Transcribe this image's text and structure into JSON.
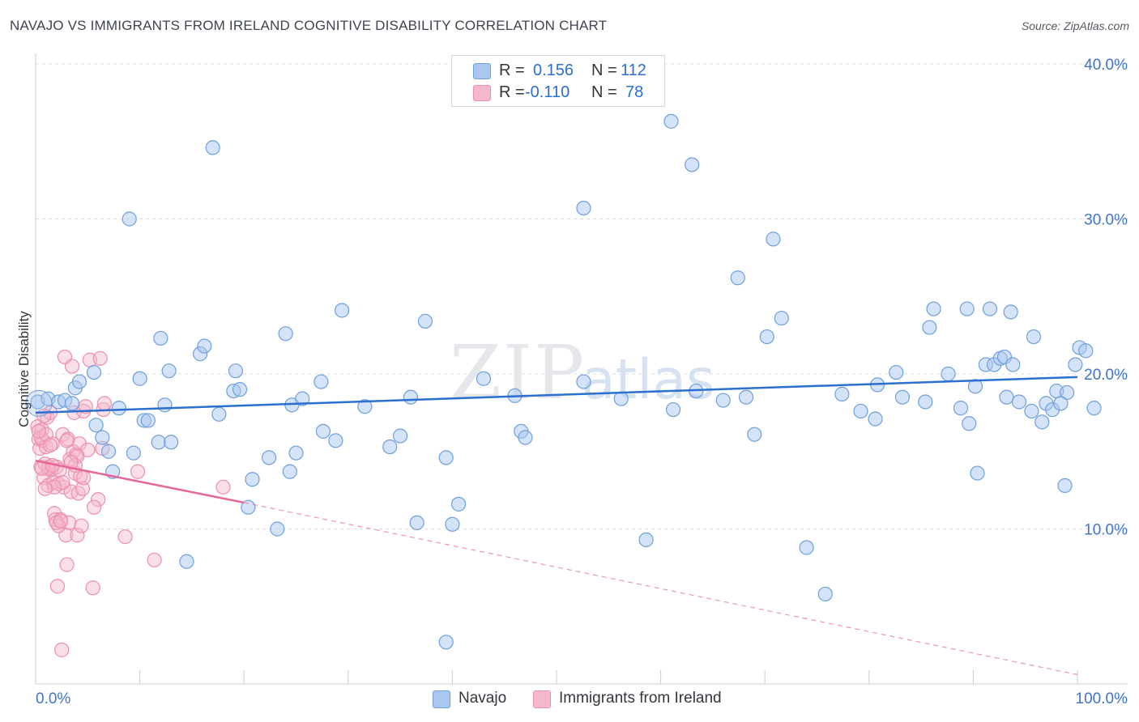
{
  "title": "NAVAJO VS IMMIGRANTS FROM IRELAND COGNITIVE DISABILITY CORRELATION CHART",
  "source": "Source: ZipAtlas.com",
  "watermark": {
    "zip": "ZIP",
    "atlas": "atlas"
  },
  "legend": {
    "navajo": {
      "r_label": "R =",
      "r_value": "0.156",
      "n_label": "N =",
      "n_value": "112"
    },
    "ireland": {
      "r_label": "R =",
      "r_value": "-0.110",
      "n_label": "N =",
      "n_value": "78"
    }
  },
  "colors": {
    "navajo_fill": "#a9c7ef",
    "navajo_stroke": "#6f9fdc",
    "navajo_line": "#2b6fcf",
    "ireland_fill": "#f5b8cb",
    "ireland_stroke": "#ec8fab",
    "ireland_line": "#e5679a",
    "axis_text": "#3f74c8",
    "grid": "#d9dce2"
  },
  "chart_data": {
    "type": "scatter",
    "title": "NAVAJO VS IMMIGRANTS FROM IRELAND COGNITIVE DISABILITY CORRELATION CHART",
    "ylabel": "Cognitive Disability",
    "xlabel": "",
    "xlim": [
      0,
      100
    ],
    "ylim": [
      0,
      41
    ],
    "x_tick_labels": [
      "0.0%",
      "100.0%"
    ],
    "y_ticks": [
      10,
      20,
      30,
      40
    ],
    "y_tick_labels": [
      "10.0%",
      "20.0%",
      "30.0%",
      "40.0%"
    ],
    "grid": true,
    "legend_position": "bottom",
    "series": [
      {
        "name": "Navajo",
        "trend": {
          "x0": 0,
          "y0": 17.5,
          "x1": 100,
          "y1": 19.8
        },
        "points": [
          [
            0.2,
            18.2
          ],
          [
            1.2,
            18.4
          ],
          [
            2.2,
            18.2
          ],
          [
            2.8,
            18.3
          ],
          [
            3.5,
            18.1
          ],
          [
            3.8,
            19.1
          ],
          [
            4.2,
            19.5
          ],
          [
            5.6,
            20.1
          ],
          [
            5.8,
            16.7
          ],
          [
            6.4,
            15.9
          ],
          [
            7.0,
            15.0
          ],
          [
            7.4,
            13.7
          ],
          [
            8.0,
            17.8
          ],
          [
            9.0,
            30.0
          ],
          [
            9.4,
            14.9
          ],
          [
            10.0,
            19.7
          ],
          [
            10.4,
            17.0
          ],
          [
            10.8,
            17.0
          ],
          [
            11.8,
            15.6
          ],
          [
            12.0,
            22.3
          ],
          [
            12.4,
            18.0
          ],
          [
            12.8,
            20.2
          ],
          [
            13.0,
            15.6
          ],
          [
            14.5,
            7.9
          ],
          [
            15.8,
            21.3
          ],
          [
            16.2,
            21.8
          ],
          [
            17.0,
            34.6
          ],
          [
            17.6,
            17.4
          ],
          [
            19.0,
            18.9
          ],
          [
            19.2,
            20.2
          ],
          [
            19.6,
            19.0
          ],
          [
            20.4,
            11.4
          ],
          [
            20.8,
            13.2
          ],
          [
            22.4,
            14.6
          ],
          [
            23.2,
            10.0
          ],
          [
            24.0,
            22.6
          ],
          [
            24.6,
            18.0
          ],
          [
            25.0,
            14.9
          ],
          [
            25.6,
            18.4
          ],
          [
            27.4,
            19.5
          ],
          [
            27.6,
            16.3
          ],
          [
            28.8,
            15.7
          ],
          [
            29.4,
            24.1
          ],
          [
            31.6,
            17.9
          ],
          [
            34.0,
            15.3
          ],
          [
            35.0,
            16.0
          ],
          [
            36.0,
            18.5
          ],
          [
            37.4,
            23.4
          ],
          [
            39.4,
            14.6
          ],
          [
            40.6,
            11.6
          ],
          [
            43.0,
            19.7
          ],
          [
            46.0,
            18.6
          ],
          [
            46.6,
            16.3
          ],
          [
            47.0,
            15.9
          ],
          [
            52.6,
            30.7
          ],
          [
            52.6,
            19.5
          ],
          [
            56.2,
            18.4
          ],
          [
            58.6,
            9.3
          ],
          [
            61.0,
            36.3
          ],
          [
            61.2,
            17.7
          ],
          [
            63.0,
            33.5
          ],
          [
            63.4,
            18.9
          ],
          [
            66.0,
            18.3
          ],
          [
            67.4,
            26.2
          ],
          [
            68.2,
            18.5
          ],
          [
            69.0,
            16.1
          ],
          [
            70.2,
            22.4
          ],
          [
            70.8,
            28.7
          ],
          [
            71.6,
            23.6
          ],
          [
            74.0,
            8.8
          ],
          [
            75.8,
            5.8
          ],
          [
            77.4,
            18.7
          ],
          [
            79.2,
            17.6
          ],
          [
            80.6,
            17.1
          ],
          [
            80.8,
            19.3
          ],
          [
            82.6,
            20.1
          ],
          [
            83.2,
            18.5
          ],
          [
            85.4,
            18.2
          ],
          [
            85.8,
            23.0
          ],
          [
            86.2,
            24.2
          ],
          [
            87.6,
            20.0
          ],
          [
            88.8,
            17.8
          ],
          [
            89.4,
            24.2
          ],
          [
            89.6,
            16.8
          ],
          [
            90.2,
            19.2
          ],
          [
            90.4,
            13.6
          ],
          [
            91.2,
            20.6
          ],
          [
            91.6,
            24.2
          ],
          [
            92.0,
            20.6
          ],
          [
            92.6,
            21.0
          ],
          [
            93.0,
            21.1
          ],
          [
            93.6,
            24.0
          ],
          [
            93.8,
            20.6
          ],
          [
            94.4,
            18.2
          ],
          [
            95.6,
            17.6
          ],
          [
            95.8,
            22.4
          ],
          [
            96.6,
            16.9
          ],
          [
            97.0,
            18.1
          ],
          [
            97.6,
            17.7
          ],
          [
            98.0,
            18.9
          ],
          [
            98.8,
            12.8
          ],
          [
            99.0,
            18.8
          ],
          [
            99.8,
            20.6
          ],
          [
            100.2,
            21.7
          ],
          [
            100.8,
            21.5
          ],
          [
            101.6,
            17.8
          ],
          [
            98.4,
            18.1
          ],
          [
            93.2,
            18.5
          ],
          [
            24.4,
            13.7
          ],
          [
            39.4,
            2.7
          ],
          [
            40.0,
            10.3
          ],
          [
            36.6,
            10.4
          ]
        ]
      },
      {
        "name": "Immigrants from Ireland",
        "trend": {
          "x0": 0,
          "y0": 14.4,
          "x1": 20,
          "y1": 11.7,
          "dash_to": {
            "x": 100,
            "y": 0.6
          }
        },
        "points": [
          [
            0.2,
            16.6
          ],
          [
            0.3,
            15.8
          ],
          [
            0.4,
            15.2
          ],
          [
            0.5,
            14.0
          ],
          [
            0.6,
            16.4
          ],
          [
            0.7,
            15.7
          ],
          [
            0.8,
            13.3
          ],
          [
            0.9,
            14.2
          ],
          [
            1.0,
            15.3
          ],
          [
            1.1,
            17.2
          ],
          [
            1.2,
            12.8
          ],
          [
            1.3,
            14.0
          ],
          [
            1.4,
            17.5
          ],
          [
            1.5,
            13.8
          ],
          [
            1.6,
            15.5
          ],
          [
            1.7,
            13.0
          ],
          [
            1.8,
            11.0
          ],
          [
            1.9,
            10.6
          ],
          [
            2.0,
            14.0
          ],
          [
            2.1,
            6.3
          ],
          [
            2.2,
            12.9
          ],
          [
            2.3,
            13.8
          ],
          [
            2.4,
            10.6
          ],
          [
            2.5,
            2.2
          ],
          [
            2.6,
            16.1
          ],
          [
            2.7,
            12.7
          ],
          [
            2.8,
            21.1
          ],
          [
            2.9,
            9.6
          ],
          [
            3.0,
            7.7
          ],
          [
            3.1,
            15.8
          ],
          [
            3.2,
            10.4
          ],
          [
            3.3,
            14.5
          ],
          [
            3.4,
            12.4
          ],
          [
            3.5,
            20.5
          ],
          [
            3.6,
            15.0
          ],
          [
            3.7,
            17.5
          ],
          [
            3.8,
            13.6
          ],
          [
            3.9,
            14.8
          ],
          [
            4.0,
            9.6
          ],
          [
            4.1,
            12.3
          ],
          [
            4.2,
            15.5
          ],
          [
            4.3,
            13.4
          ],
          [
            4.4,
            10.2
          ],
          [
            4.5,
            12.6
          ],
          [
            4.6,
            17.6
          ],
          [
            4.8,
            17.9
          ],
          [
            5.0,
            15.1
          ],
          [
            5.2,
            20.9
          ],
          [
            5.5,
            6.2
          ],
          [
            6.0,
            11.9
          ],
          [
            6.2,
            21.0
          ],
          [
            6.5,
            17.7
          ],
          [
            6.6,
            18.1
          ],
          [
            8.6,
            9.5
          ],
          [
            9.8,
            13.7
          ],
          [
            11.4,
            8.0
          ],
          [
            18.0,
            12.7
          ],
          [
            0.5,
            15.9
          ],
          [
            1.2,
            13.9
          ],
          [
            2.2,
            10.2
          ],
          [
            3.8,
            14.1
          ],
          [
            1.0,
            16.1
          ],
          [
            0.8,
            17.3
          ],
          [
            1.4,
            15.4
          ],
          [
            3.0,
            15.7
          ],
          [
            0.6,
            13.9
          ],
          [
            2.6,
            13.0
          ],
          [
            1.8,
            12.7
          ],
          [
            4.0,
            14.7
          ],
          [
            2.0,
            10.4
          ],
          [
            3.4,
            14.3
          ],
          [
            5.6,
            11.4
          ],
          [
            1.6,
            14.1
          ],
          [
            0.9,
            12.6
          ],
          [
            2.4,
            10.5
          ],
          [
            4.6,
            13.3
          ],
          [
            0.3,
            16.3
          ],
          [
            6.4,
            15.2
          ]
        ]
      }
    ]
  },
  "bottom_legend": {
    "navajo": "Navajo",
    "ireland": "Immigrants from Ireland"
  }
}
